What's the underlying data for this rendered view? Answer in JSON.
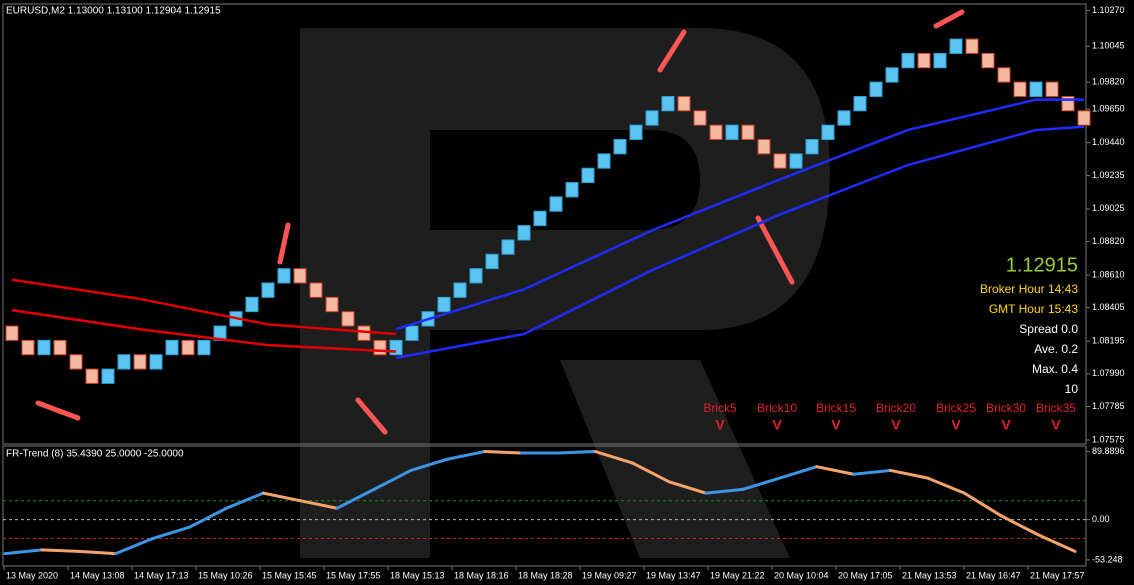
{
  "chart_data": [
    {
      "type": "renko",
      "title": "EURUSD,M2  1.13000 1.13100 1.12904 1.12915",
      "first_open": 1.0829,
      "values": [
        1.082,
        1.0811,
        1.082,
        1.0811,
        1.0802,
        1.0793,
        1.0802,
        1.0811,
        1.0802,
        1.0811,
        1.082,
        1.0811,
        1.082,
        1.0829,
        1.0838,
        1.0847,
        1.0856,
        1.0865,
        1.0856,
        1.0847,
        1.0838,
        1.0829,
        1.082,
        1.0811,
        1.082,
        1.0829,
        1.0838,
        1.0847,
        1.0856,
        1.0865,
        1.0874,
        1.0883,
        1.0892,
        1.0901,
        1.091,
        1.0919,
        1.0928,
        1.0937,
        1.0946,
        1.0955,
        1.0964,
        1.0973,
        1.0964,
        1.0955,
        1.0946,
        1.0955,
        1.0946,
        1.0937,
        1.0928,
        1.0937,
        1.0946,
        1.0955,
        1.0964,
        1.0973,
        1.0982,
        1.0991,
        1.1,
        1.0991,
        1.1,
        1.1009,
        1.1,
        1.0991,
        1.0982,
        1.0973,
        1.0982,
        1.0973,
        1.0964,
        1.0955
      ],
      "categories": [
        "13 May 2020",
        null,
        null,
        null,
        "14 May 13:08",
        null,
        null,
        null,
        "14 May 17:13",
        null,
        null,
        null,
        "15 May 10:26",
        null,
        null,
        null,
        "15 May 15:45",
        null,
        null,
        null,
        "15 May 17:55",
        null,
        null,
        null,
        "18 May 15:13",
        null,
        null,
        null,
        "18 May 18:16",
        null,
        null,
        null,
        "18 May 18:28",
        null,
        null,
        null,
        "19 May 09:27",
        null,
        null,
        null,
        "19 May 13:47",
        null,
        null,
        null,
        "19 May 21:22",
        null,
        null,
        null,
        "20 May 10:04",
        null,
        null,
        null,
        "20 May 17:05",
        null,
        null,
        null,
        "21 May 13:53",
        null,
        null,
        null,
        "21 May 16:47",
        null,
        null,
        null,
        "21 May 17:57",
        null,
        null,
        null
      ],
      "up_color": "#5cc4f2",
      "down_color": "#f5b9a2",
      "series": [
        {
          "name": "MA red upper",
          "color": "#e00000",
          "x": [
            0,
            8,
            16,
            20,
            24
          ],
          "values": [
            1.0858,
            1.0846,
            1.083,
            1.0827,
            1.0824
          ]
        },
        {
          "name": "MA red lower",
          "color": "#e00000",
          "x": [
            0,
            8,
            16,
            24
          ],
          "values": [
            1.0839,
            1.0827,
            1.0817,
            1.0813
          ]
        },
        {
          "name": "MA blue upper",
          "color": "#1f2cff",
          "x": [
            24,
            32,
            40,
            48,
            56,
            64,
            67
          ],
          "values": [
            1.0827,
            1.0852,
            1.0889,
            1.0921,
            1.0952,
            1.0971,
            1.0971
          ]
        },
        {
          "name": "MA blue lower",
          "color": "#1f2cff",
          "x": [
            24,
            32,
            40,
            48,
            56,
            64,
            67
          ],
          "values": [
            1.0809,
            1.0824,
            1.0864,
            1.0899,
            1.093,
            1.0952,
            1.0954
          ]
        }
      ],
      "ylim": [
        1.0755,
        1.1031
      ],
      "yticks": [
        {
          "value": 1.1027,
          "label": "1.10270"
        },
        {
          "value": 1.10045,
          "label": "1.10045"
        },
        {
          "value": 1.0982,
          "label": "1.09820"
        },
        {
          "value": 1.0965,
          "label": "1.09650"
        },
        {
          "value": 1.0944,
          "label": "1.09440"
        },
        {
          "value": 1.09235,
          "label": "1.09235"
        },
        {
          "value": 1.09025,
          "label": "1.09025"
        },
        {
          "value": 1.0882,
          "label": "1.08820"
        },
        {
          "value": 1.0861,
          "label": "1.08610"
        },
        {
          "value": 1.08405,
          "label": "1.08405"
        },
        {
          "value": 1.08195,
          "label": "1.08195"
        },
        {
          "value": 1.0799,
          "label": "1.07990"
        },
        {
          "value": 1.07785,
          "label": "1.07785"
        },
        {
          "value": 1.07575,
          "label": "1.07575"
        }
      ],
      "last_price": "1.12915",
      "info": [
        "Broker Hour  14:43",
        "GMT Hour  15:43",
        "Spread 0.0",
        "Ave. 0.2",
        "Max. 0.4",
        "10"
      ],
      "brick_labels": [
        "Brick5",
        "Brick10",
        "Brick15",
        "Brick20",
        "Brick25",
        "Brick30",
        "Brick35"
      ],
      "brick_marks": [
        "V",
        "V",
        "V",
        "V",
        "V",
        "V",
        "V"
      ]
    },
    {
      "type": "line",
      "title": "FR-Trend (8) 35.4390 25.0000 -25.0000",
      "values": [
        -45,
        -40,
        -42,
        -45,
        -25,
        -10,
        15,
        35,
        25,
        15,
        40,
        65,
        80,
        90,
        88,
        88,
        90,
        75,
        50,
        35,
        40,
        55,
        70,
        60,
        65,
        55,
        35,
        5,
        -20,
        -42
      ],
      "up_color": "#3d95e6",
      "down_color": "#f4a46a",
      "levels": [
        {
          "value": 25,
          "color": "#1e8a1e"
        },
        {
          "value": -25,
          "color": "#c0282a"
        }
      ],
      "ylim": [
        -60,
        96
      ],
      "yticks": [
        89.8896,
        {
          "value": 0,
          "label": "0.00"
        },
        -53.248
      ]
    }
  ]
}
